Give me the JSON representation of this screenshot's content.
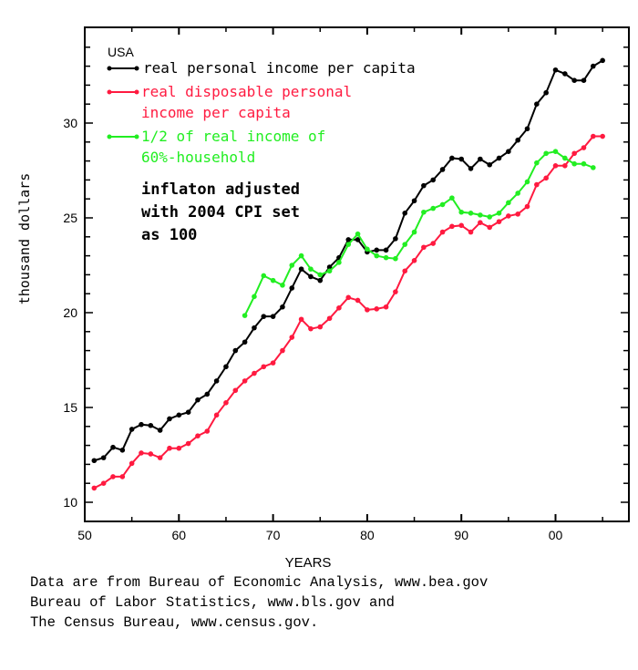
{
  "chart_data": {
    "type": "line",
    "xlabel": "YEARS",
    "ylabel": "thousand dollars",
    "xlim": [
      1950,
      2007
    ],
    "ylim": [
      9,
      35
    ],
    "xticks": [
      1950,
      1960,
      1970,
      1980,
      1990,
      2000
    ],
    "xtick_labels": [
      "50",
      "60",
      "70",
      "80",
      "90",
      "00"
    ],
    "yticks": [
      10,
      15,
      20,
      25,
      30
    ],
    "ytick_labels": [
      "10",
      "15",
      "20",
      "25",
      "30"
    ],
    "grid": false,
    "legend_title": "USA",
    "legend_placement": "top-left",
    "annotation": [
      "inflaton adjusted",
      "with 2004 CPI set",
      "as 100"
    ],
    "series": [
      {
        "name": "real personal income per capita",
        "legend_lines": [
          "real personal income per capita"
        ],
        "color": "#000000",
        "x_start": 1951,
        "values": [
          12.2,
          12.35,
          12.9,
          12.75,
          13.85,
          14.1,
          14.05,
          13.8,
          14.4,
          14.6,
          14.75,
          15.4,
          15.7,
          16.4,
          17.15,
          18.0,
          18.45,
          19.2,
          19.8,
          19.8,
          20.3,
          21.3,
          22.3,
          21.9,
          21.7,
          22.4,
          22.9,
          23.85,
          23.85,
          23.2,
          23.3,
          23.3,
          23.9,
          25.25,
          25.9,
          26.7,
          27.0,
          27.55,
          28.15,
          28.1,
          27.6,
          28.1,
          27.8,
          28.15,
          28.5,
          29.1,
          29.7,
          31.0,
          31.6,
          32.8,
          32.6,
          32.25,
          32.25,
          33.0,
          33.3
        ]
      },
      {
        "name": "real disposable personal income per capita",
        "legend_lines": [
          "real disposable personal",
          "income per capita"
        ],
        "color": "#ff1a40",
        "x_start": 1951,
        "values": [
          10.75,
          11.0,
          11.35,
          11.35,
          12.05,
          12.6,
          12.55,
          12.35,
          12.85,
          12.85,
          13.1,
          13.5,
          13.75,
          14.6,
          15.25,
          15.9,
          16.4,
          16.8,
          17.15,
          17.35,
          18.0,
          18.7,
          19.65,
          19.15,
          19.25,
          19.7,
          20.25,
          20.8,
          20.65,
          20.15,
          20.2,
          20.3,
          21.1,
          22.2,
          22.75,
          23.45,
          23.65,
          24.25,
          24.55,
          24.6,
          24.25,
          24.75,
          24.5,
          24.8,
          25.1,
          25.2,
          25.6,
          26.75,
          27.1,
          27.75,
          27.75,
          28.4,
          28.7,
          29.3,
          29.3
        ]
      },
      {
        "name": "1/2 of real income of 60%-household",
        "legend_lines": [
          "1/2 of real income of",
          "60%-household"
        ],
        "color": "#22ee22",
        "x_start": 1967,
        "values": [
          19.85,
          20.85,
          21.95,
          21.7,
          21.45,
          22.5,
          23.0,
          22.3,
          22.0,
          22.2,
          22.65,
          23.6,
          24.15,
          23.35,
          23.0,
          22.9,
          22.85,
          23.6,
          24.25,
          25.3,
          25.5,
          25.7,
          26.05,
          25.3,
          25.25,
          25.15,
          25.05,
          25.25,
          25.8,
          26.3,
          26.9,
          27.9,
          28.4,
          28.5,
          28.15,
          27.85,
          27.85,
          27.65
        ]
      }
    ]
  },
  "source_lines": [
    "Data are from Bureau of Economic Analysis, www.bea.gov",
    "Bureau of Labor Statistics, www.bls.gov and",
    "The Census Bureau, www.census.gov."
  ]
}
